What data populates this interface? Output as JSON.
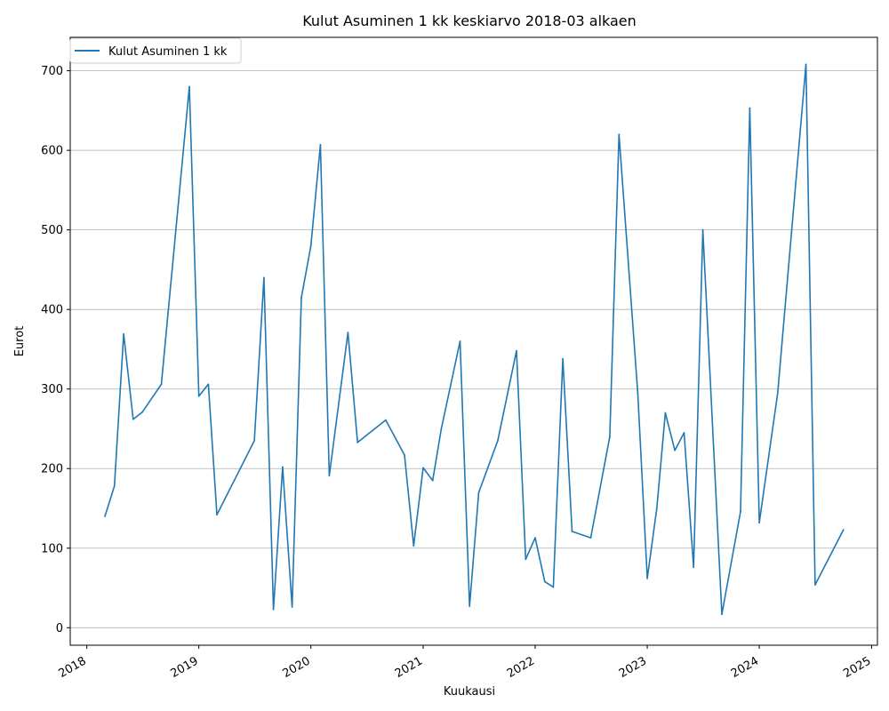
{
  "chart_data": {
    "type": "line",
    "title": "Kulut Asuminen 1 kk keskiarvo 2018-03 alkaen",
    "xlabel": "Kuukausi",
    "ylabel": "Eurot",
    "xlim": [
      "2017-11-08",
      "2025-01-20"
    ],
    "ylim": [
      -22,
      742
    ],
    "x_ticks": [
      "2018",
      "2019",
      "2020",
      "2021",
      "2022",
      "2023",
      "2024",
      "2025"
    ],
    "y_ticks": [
      0,
      100,
      200,
      300,
      400,
      500,
      600,
      700
    ],
    "grid": "y",
    "legend": "upper-left",
    "colors": {
      "series": "#1f77b4",
      "grid": "#b0b0b0"
    },
    "series": [
      {
        "name": "Kulut Asuminen 1 kk",
        "x": [
          "2018-03",
          "2018-04",
          "2018-05",
          "2018-06",
          "2018-07",
          "2018-09",
          "2018-12",
          "2019-01",
          "2019-02",
          "2019-03",
          "2019-07",
          "2019-08",
          "2019-09",
          "2019-10",
          "2019-11",
          "2019-12",
          "2020-01",
          "2020-02",
          "2020-03",
          "2020-05",
          "2020-06",
          "2020-09",
          "2020-11",
          "2020-12",
          "2021-01",
          "2021-02",
          "2021-03",
          "2021-05",
          "2021-06",
          "2021-07",
          "2021-09",
          "2021-11",
          "2021-12",
          "2022-01",
          "2022-02",
          "2022-03",
          "2022-04",
          "2022-05",
          "2022-07",
          "2022-09",
          "2022-10",
          "2022-12",
          "2023-01",
          "2023-02",
          "2023-03",
          "2023-04",
          "2023-05",
          "2023-06",
          "2023-07",
          "2023-09",
          "2023-11",
          "2023-12",
          "2024-01",
          "2024-03",
          "2024-06",
          "2024-07",
          "2024-10"
        ],
        "y": [
          140,
          178,
          369,
          262,
          271,
          306,
          680,
          291,
          306,
          142,
          235,
          440,
          23,
          202,
          26,
          415,
          480,
          607,
          191,
          371,
          233,
          261,
          217,
          103,
          201,
          185,
          250,
          360,
          27,
          170,
          235,
          348,
          86,
          113,
          58,
          51,
          338,
          121,
          113,
          240,
          620,
          295,
          62,
          150,
          270,
          223,
          245,
          76,
          500,
          17,
          146,
          653,
          132,
          295,
          708,
          54,
          123
        ]
      }
    ]
  }
}
